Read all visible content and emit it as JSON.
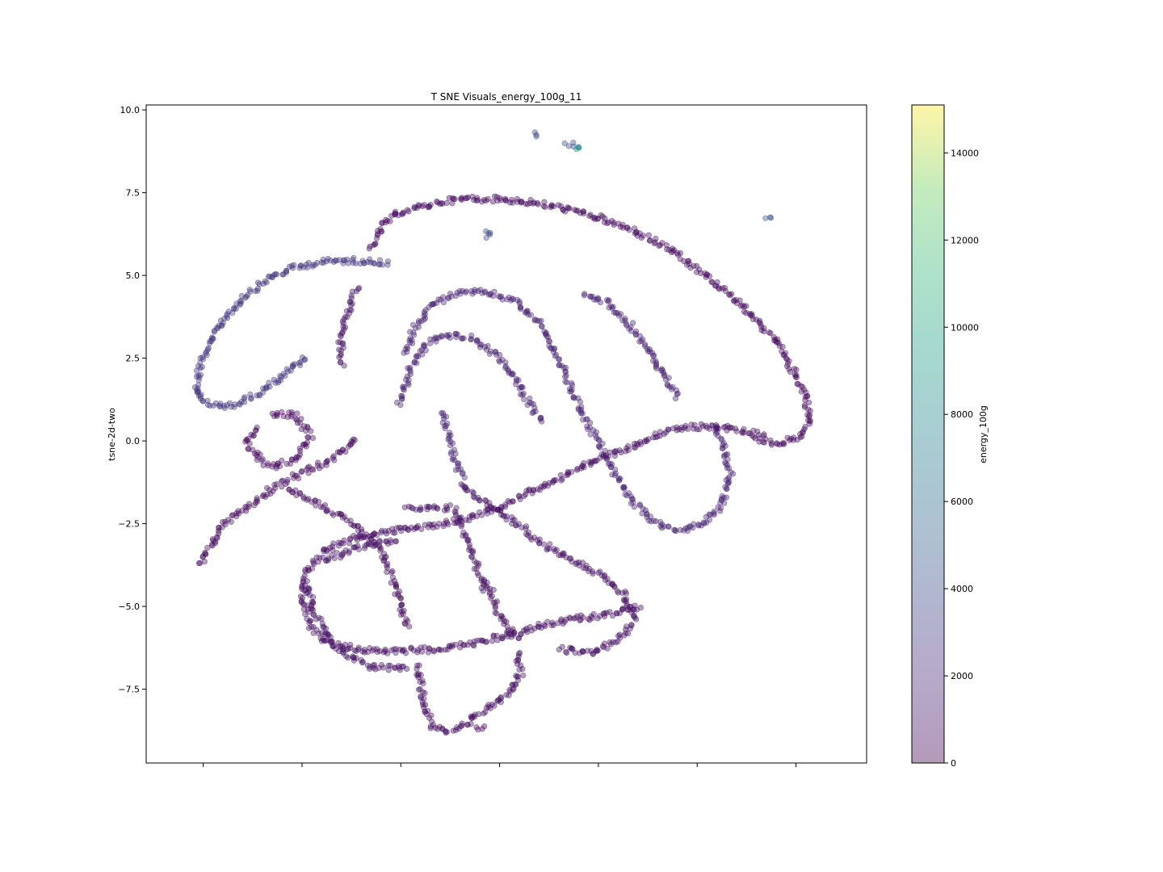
{
  "chart_data": {
    "type": "scatter",
    "title": "T SNE Visuals_energy_100g_11",
    "xlabel": "",
    "ylabel": "tsne-2d-two",
    "xlim": [
      -9.6,
      10.6
    ],
    "ylim": [
      -9.73,
      10.15
    ],
    "x_tick_labels_shown": false,
    "x_ticks": [
      -8,
      -5.23,
      -2.46,
      0.31,
      3.08,
      5.85,
      8.62
    ],
    "y_ticks": [
      -7.5,
      -5.0,
      -2.5,
      0.0,
      2.5,
      5.0,
      7.5,
      10.0
    ],
    "y_tick_labels": [
      "−7.5",
      "−5.0",
      "−2.5",
      "0.0",
      "2.5",
      "5.0",
      "7.5",
      "10.0"
    ],
    "grid": false,
    "marker_alpha": 0.4,
    "colorbar": {
      "label": "energy_100g",
      "range": [
        0,
        15100
      ],
      "ticks": [
        0,
        2000,
        4000,
        6000,
        8000,
        10000,
        12000,
        14000
      ],
      "tick_labels": [
        "0",
        "2000",
        "4000",
        "6000",
        "8000",
        "10000",
        "12000",
        "14000"
      ],
      "colormap": "viridis"
    },
    "clusters": [
      {
        "energy": 2600,
        "points": [
          [
            -8.2,
            1.5
          ],
          [
            -8.1,
            2.3
          ],
          [
            -7.8,
            3.0
          ],
          [
            -7.4,
            3.7
          ],
          [
            -6.9,
            4.3
          ],
          [
            -6.2,
            4.9
          ],
          [
            -5.4,
            5.25
          ],
          [
            -4.6,
            5.42
          ],
          [
            -3.8,
            5.45
          ],
          [
            -3.0,
            5.4
          ],
          [
            -2.8,
            5.38
          ]
        ]
      },
      {
        "energy": 2600,
        "points": [
          [
            -8.2,
            1.5
          ],
          [
            -8.0,
            1.2
          ],
          [
            -7.6,
            1.05
          ],
          [
            -7.1,
            1.1
          ],
          [
            -6.6,
            1.35
          ],
          [
            -6.1,
            1.7
          ],
          [
            -5.6,
            2.1
          ],
          [
            -5.1,
            2.5
          ]
        ]
      },
      {
        "energy": 900,
        "points": [
          [
            -4.1,
            2.3
          ],
          [
            -4.15,
            3.0
          ],
          [
            -4.0,
            3.8
          ],
          [
            -3.7,
            4.6
          ]
        ]
      },
      {
        "energy": 500,
        "points": [
          [
            -3.3,
            5.8
          ],
          [
            -3.0,
            6.5
          ],
          [
            -2.5,
            6.9
          ],
          [
            -1.8,
            7.1
          ],
          [
            -1.2,
            7.25
          ],
          [
            -0.6,
            7.32
          ],
          [
            0.4,
            7.3
          ],
          [
            1.2,
            7.2
          ],
          [
            2.2,
            7.0
          ],
          [
            3.2,
            6.7
          ],
          [
            4.2,
            6.3
          ],
          [
            5.2,
            5.7
          ],
          [
            6.2,
            4.9
          ],
          [
            7.2,
            4.0
          ],
          [
            8.0,
            3.1
          ],
          [
            8.5,
            2.2
          ],
          [
            8.9,
            1.4
          ],
          [
            9.0,
            0.6
          ],
          [
            8.7,
            0.1
          ],
          [
            8.1,
            -0.1
          ],
          [
            7.5,
            0.1
          ]
        ]
      },
      {
        "energy": 1500,
        "points": [
          [
            -2.5,
            1.1
          ],
          [
            -2.2,
            2.2
          ],
          [
            -1.7,
            3.0
          ],
          [
            -1.1,
            3.2
          ],
          [
            -0.5,
            3.1
          ],
          [
            0.1,
            2.7
          ],
          [
            0.6,
            2.1
          ],
          [
            1.0,
            1.4
          ],
          [
            1.5,
            0.6
          ]
        ]
      },
      {
        "energy": 1700,
        "points": [
          [
            -2.3,
            2.6
          ],
          [
            -2.1,
            3.4
          ],
          [
            -1.6,
            4.1
          ],
          [
            -0.9,
            4.45
          ],
          [
            -0.1,
            4.5
          ],
          [
            0.7,
            4.25
          ],
          [
            1.4,
            3.6
          ],
          [
            1.9,
            2.6
          ],
          [
            2.3,
            1.6
          ],
          [
            2.7,
            0.7
          ],
          [
            3.1,
            -0.1
          ],
          [
            3.6,
            -1.1
          ],
          [
            4.1,
            -1.9
          ],
          [
            4.7,
            -2.5
          ],
          [
            5.4,
            -2.7
          ],
          [
            6.0,
            -2.5
          ],
          [
            6.5,
            -2.0
          ],
          [
            6.8,
            -1.0
          ],
          [
            6.6,
            -0.2
          ],
          [
            6.3,
            0.5
          ]
        ]
      },
      {
        "energy": 1800,
        "points": [
          [
            -1.3,
            0.9
          ],
          [
            -0.9,
            -0.7
          ],
          [
            -0.7,
            -1.1
          ]
        ]
      },
      {
        "energy": 1500,
        "points": [
          [
            2.7,
            4.4
          ],
          [
            3.3,
            4.2
          ],
          [
            3.9,
            3.6
          ],
          [
            4.4,
            2.9
          ],
          [
            4.9,
            2.0
          ],
          [
            5.3,
            1.3
          ]
        ]
      },
      {
        "energy": 600,
        "points": [
          [
            -8.1,
            -3.7
          ],
          [
            -7.5,
            -2.6
          ],
          [
            -6.8,
            -2.0
          ],
          [
            -6.0,
            -1.4
          ],
          [
            -5.1,
            -0.9
          ],
          [
            -4.5,
            -0.6
          ],
          [
            -4.1,
            -0.3
          ],
          [
            -3.7,
            0.1
          ]
        ]
      },
      {
        "energy": 500,
        "points": [
          [
            -6.5,
            0.4
          ],
          [
            -6.8,
            -0.1
          ],
          [
            -6.2,
            -0.8
          ],
          [
            -5.5,
            -0.6
          ],
          [
            -5.0,
            0.1
          ],
          [
            -5.4,
            0.8
          ],
          [
            -6.1,
            0.8
          ]
        ]
      },
      {
        "energy": 600,
        "points": [
          [
            -5.6,
            -1.4
          ],
          [
            -4.6,
            -2.0
          ],
          [
            -3.7,
            -2.6
          ],
          [
            -3.0,
            -3.4
          ],
          [
            -2.6,
            -4.4
          ],
          [
            -2.3,
            -5.6
          ]
        ]
      },
      {
        "energy": 700,
        "points": [
          [
            -5.1,
            -3.9
          ],
          [
            -4.6,
            -3.3
          ],
          [
            -3.7,
            -2.9
          ],
          [
            -2.6,
            -2.7
          ],
          [
            -1.5,
            -2.55
          ],
          [
            -0.5,
            -2.3
          ],
          [
            0.3,
            -2.0
          ],
          [
            1.2,
            -1.5
          ],
          [
            2.1,
            -1.1
          ],
          [
            3.0,
            -0.6
          ],
          [
            3.9,
            -0.2
          ],
          [
            4.8,
            0.2
          ],
          [
            5.5,
            0.4
          ],
          [
            6.3,
            0.45
          ],
          [
            7.1,
            0.3
          ],
          [
            7.7,
            0.2
          ]
        ]
      },
      {
        "energy": 700,
        "points": [
          [
            -5.1,
            -3.9
          ],
          [
            -5.2,
            -4.8
          ],
          [
            -5.0,
            -5.6
          ],
          [
            -4.5,
            -6.1
          ],
          [
            -3.6,
            -6.3
          ],
          [
            -2.6,
            -6.35
          ],
          [
            -1.6,
            -6.3
          ],
          [
            -0.6,
            -6.15
          ],
          [
            0.4,
            -5.9
          ],
          [
            1.4,
            -5.6
          ],
          [
            2.3,
            -5.4
          ],
          [
            3.3,
            -5.25
          ],
          [
            4.2,
            -5.0
          ]
        ]
      },
      {
        "energy": 800,
        "points": [
          [
            -5.1,
            -4.3
          ],
          [
            -4.8,
            -5.4
          ],
          [
            -4.3,
            -6.2
          ],
          [
            -3.4,
            -6.8
          ],
          [
            -2.3,
            -6.9
          ]
        ]
      },
      {
        "energy": 900,
        "points": [
          [
            -4.6,
            -3.6
          ],
          [
            -3.6,
            -3.2
          ],
          [
            -2.6,
            -3.0
          ]
        ]
      },
      {
        "energy": 800,
        "points": [
          [
            -0.8,
            -1.3
          ],
          [
            0.0,
            -1.9
          ],
          [
            0.8,
            -2.5
          ],
          [
            1.5,
            -3.1
          ],
          [
            2.3,
            -3.6
          ],
          [
            3.1,
            -4.0
          ],
          [
            3.8,
            -4.6
          ],
          [
            4.1,
            -5.4
          ],
          [
            3.6,
            -6.1
          ],
          [
            2.8,
            -6.4
          ],
          [
            2.0,
            -6.3
          ]
        ]
      },
      {
        "energy": 900,
        "points": [
          [
            -1.0,
            -2.0
          ],
          [
            -0.6,
            -3.0
          ],
          [
            -0.3,
            -3.9
          ],
          [
            -0.1,
            -4.5
          ]
        ]
      },
      {
        "energy": 600,
        "points": [
          [
            0.0,
            -4.3
          ],
          [
            0.2,
            -5.0
          ],
          [
            0.5,
            -5.6
          ],
          [
            0.8,
            -6.0
          ]
        ]
      },
      {
        "energy": 700,
        "points": [
          [
            -2.0,
            -6.8
          ],
          [
            -1.9,
            -7.4
          ],
          [
            -1.8,
            -8.0
          ],
          [
            -1.6,
            -8.6
          ],
          [
            -1.1,
            -8.8
          ],
          [
            -0.7,
            -8.6
          ],
          [
            -0.4,
            -8.3
          ],
          [
            0.1,
            -8.0
          ],
          [
            0.6,
            -7.6
          ],
          [
            0.9,
            -7.0
          ],
          [
            0.8,
            -6.4
          ]
        ]
      },
      {
        "energy": 300,
        "points": [
          [
            -0.3,
            -8.7
          ],
          [
            -0.1,
            -8.7
          ]
        ]
      },
      {
        "energy": 800,
        "points": [
          [
            -2.3,
            -2.0
          ],
          [
            -2.1,
            -2.05
          ],
          [
            -1.6,
            -2.05
          ],
          [
            -1.1,
            -2.05
          ]
        ]
      },
      {
        "energy": 3800,
        "points": [
          [
            1.3,
            9.25
          ],
          [
            1.4,
            9.25
          ]
        ]
      },
      {
        "energy": 4000,
        "points": [
          [
            2.2,
            9.0
          ],
          [
            2.4,
            8.95
          ]
        ]
      },
      {
        "energy": 8200,
        "points": [
          [
            2.5,
            8.85
          ]
        ]
      },
      {
        "energy": 4000,
        "points": [
          [
            -0.1,
            6.2
          ],
          [
            0.1,
            6.3
          ]
        ]
      },
      {
        "energy": 4400,
        "points": [
          [
            7.8,
            6.7
          ],
          [
            7.85,
            6.7
          ]
        ]
      }
    ]
  }
}
